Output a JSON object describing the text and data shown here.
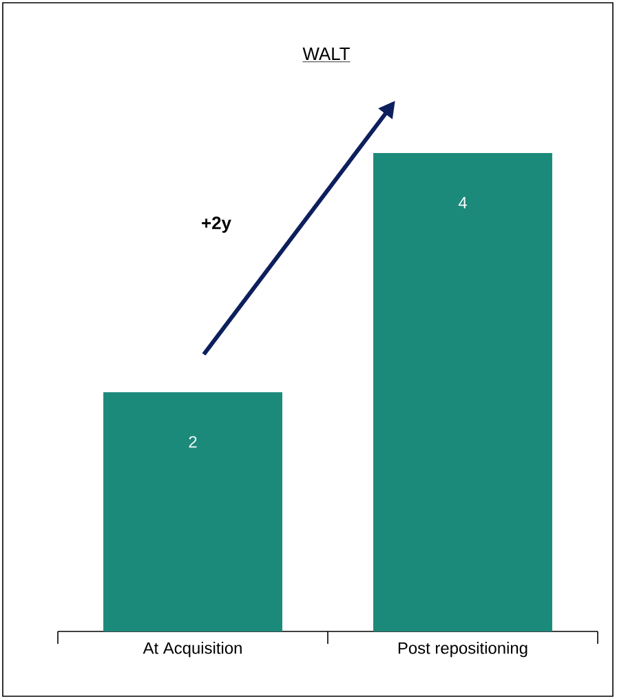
{
  "chart_data": {
    "type": "bar",
    "title": "WALT",
    "categories": [
      "At Acquisition",
      "Post repositioning"
    ],
    "values": [
      2,
      4
    ],
    "color": "#1b8a7b",
    "data_labels": true,
    "annotations": [
      "+2y"
    ]
  }
}
